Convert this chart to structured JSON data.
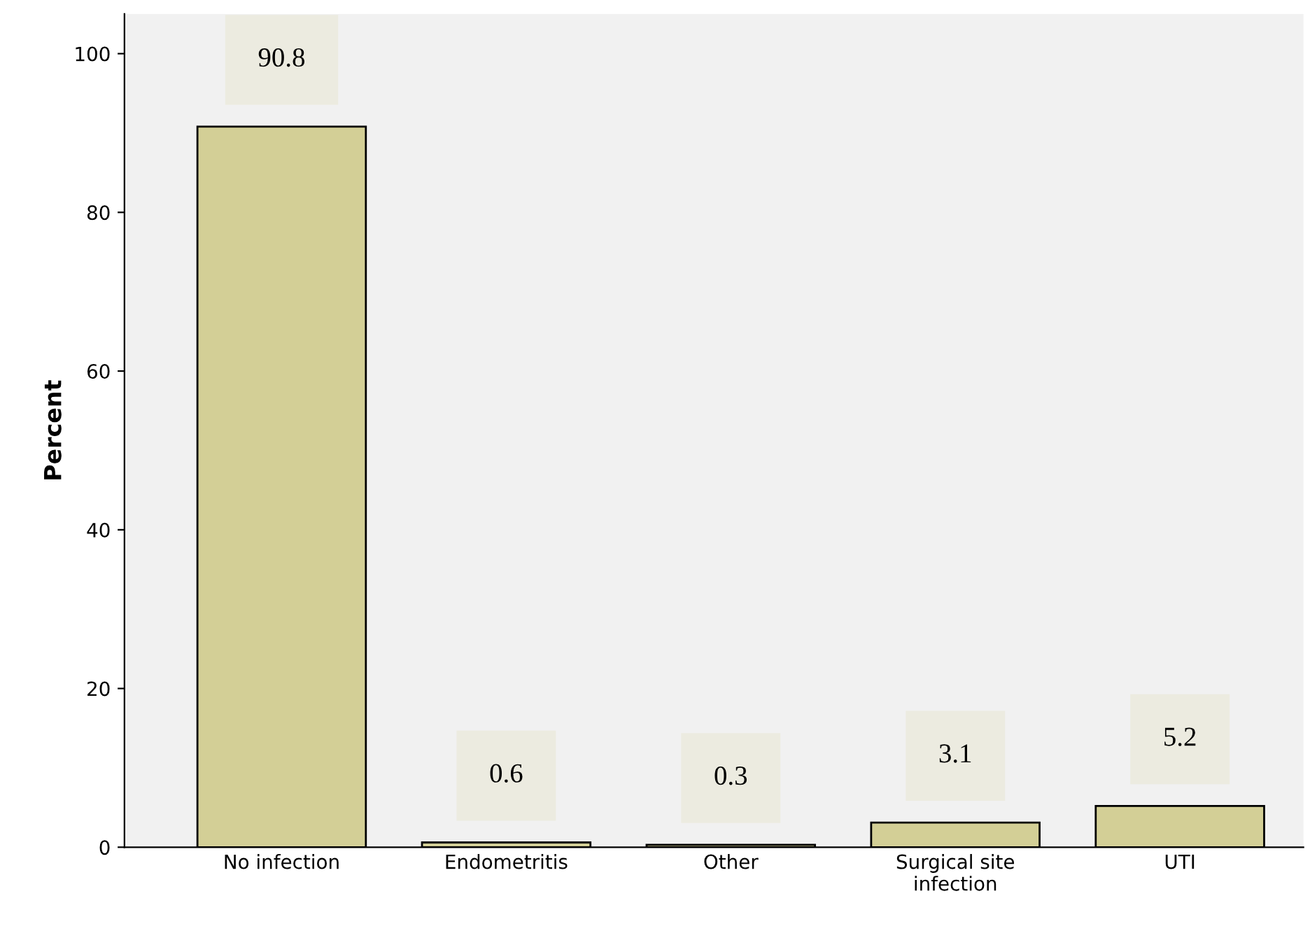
{
  "chart_data": {
    "type": "bar",
    "ylabel": "Percent",
    "categories": [
      "No infection",
      "Endometritis",
      "Other",
      "Surgical site\ninfection",
      "UTI"
    ],
    "values": [
      90.8,
      0.6,
      0.3,
      3.1,
      5.2
    ],
    "color": "#d3cf96",
    "ylim": [
      0,
      105
    ],
    "yticks": [
      0,
      20,
      40,
      60,
      80,
      100
    ],
    "data_labels": true,
    "grid": false
  }
}
